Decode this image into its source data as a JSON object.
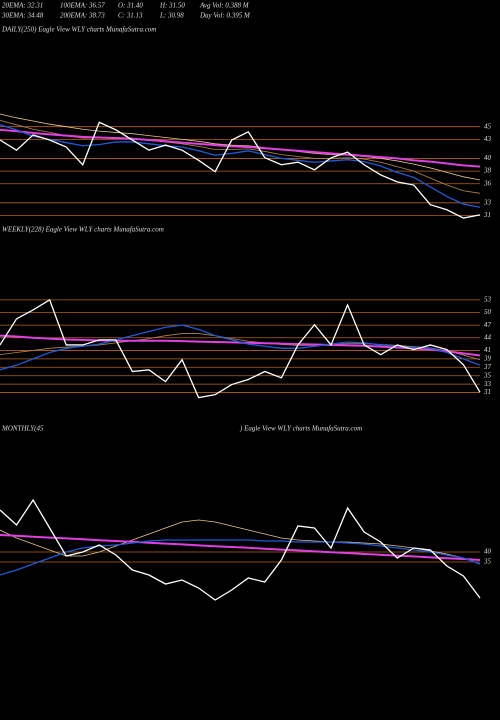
{
  "header": {
    "rows": [
      [
        "20EMA: 32.31",
        "100EMA: 36.57",
        "O: 31.40",
        "H: 31.50",
        "Avg Vol: 0.388 M"
      ],
      [
        "30EMA: 34.48",
        "200EMA: 38.73",
        "C: 31.13",
        "L: 30.98",
        "Day Vol: 0.395 M"
      ]
    ]
  },
  "chart_data": [
    {
      "type": "line",
      "title": "DAILY(250) Eagle  View  WLY charts MunafaSutra.com",
      "categories": [
        null,
        null,
        null,
        null,
        null,
        null,
        null,
        null,
        null,
        null,
        null,
        null,
        null,
        null,
        null,
        null,
        null,
        null,
        null,
        null,
        null,
        null,
        null,
        null,
        null,
        null,
        null,
        null,
        null,
        null
      ],
      "ylim": [
        29.5,
        50
      ],
      "yticks": [
        45,
        43,
        40,
        38,
        36,
        33,
        31
      ],
      "grid": true,
      "grid_color": "#b8621b",
      "series": [
        {
          "color": "#e8c48a",
          "values": [
            47,
            46.4,
            45.9,
            45.4,
            45.0,
            44.6,
            44.3,
            44.1,
            43.9,
            43.6,
            43.3,
            43.0,
            42.7,
            42.3,
            42.1,
            42.0,
            41.7,
            41.4,
            41.1,
            40.8,
            40.6,
            40.5,
            40.3,
            40.0,
            39.6,
            39.1,
            38.5,
            37.8,
            37.1,
            36.6
          ]
        },
        {
          "color": "#b08850",
          "values": [
            46.0,
            45.3,
            44.6,
            44.1,
            43.6,
            43.2,
            43.2,
            43.3,
            43.2,
            42.9,
            42.6,
            42.3,
            41.9,
            41.4,
            41.4,
            41.5,
            41.1,
            40.6,
            40.3,
            40.0,
            40.0,
            40.1,
            39.9,
            39.4,
            38.7,
            38.0,
            36.9,
            35.8,
            34.9,
            34.5
          ]
        },
        {
          "color": "#e040e0",
          "values": [
            44.5,
            44.3,
            44.0,
            43.8,
            43.6,
            43.4,
            43.3,
            43.2,
            43.1,
            42.9,
            42.7,
            42.5,
            42.3,
            42.1,
            41.9,
            41.8,
            41.6,
            41.4,
            41.2,
            41.0,
            40.8,
            40.6,
            40.4,
            40.2,
            40.0,
            39.7,
            39.5,
            39.2,
            38.9,
            38.7
          ]
        },
        {
          "color": "#1e5bd8",
          "values": [
            45.3,
            44.5,
            43.5,
            43.0,
            42.5,
            42.0,
            42.2,
            42.6,
            42.6,
            42.3,
            42.0,
            41.8,
            41.2,
            40.5,
            40.8,
            41.2,
            40.6,
            40.0,
            39.7,
            39.4,
            39.6,
            39.8,
            39.5,
            38.8,
            37.8,
            37.0,
            35.5,
            34.0,
            32.8,
            32.3
          ]
        },
        {
          "color": "#ffffff",
          "values": [
            42.9,
            41.3,
            43.7,
            42.9,
            41.8,
            39.0,
            45.7,
            44.5,
            42.9,
            41.3,
            42.1,
            41.3,
            39.7,
            37.9,
            42.9,
            44.2,
            40.1,
            39.0,
            39.4,
            38.2,
            40.1,
            41.0,
            39.0,
            37.4,
            36.3,
            35.8,
            32.7,
            31.9,
            30.6,
            31.1
          ]
        }
      ]
    },
    {
      "type": "line",
      "title": "WEEKLY(228) Eagle  View  WLY charts MunafaSutra.com",
      "categories": [
        null,
        null,
        null,
        null,
        null,
        null,
        null,
        null,
        null,
        null,
        null,
        null,
        null,
        null,
        null,
        null,
        null,
        null,
        null,
        null,
        null,
        null,
        null,
        null,
        null,
        null,
        null,
        null,
        null,
        null
      ],
      "ylim": [
        29,
        57
      ],
      "yticks": [
        53,
        50,
        47,
        44,
        41,
        39,
        37,
        35,
        33,
        31
      ],
      "grid": true,
      "grid_color": "#b8621b",
      "series": [
        {
          "color": "#b08850",
          "values": [
            40,
            40.5,
            41,
            41.5,
            41.8,
            42,
            42.3,
            42.8,
            43.3,
            43.8,
            44.5,
            45,
            45,
            44.5,
            43.8,
            43.2,
            42.8,
            42.4,
            42.2,
            42.2,
            42.4,
            42.6,
            42.6,
            42.4,
            42.2,
            41.9,
            41.6,
            40.9,
            39.9,
            38.8
          ]
        },
        {
          "color": "#e040e0",
          "values": [
            44.5,
            44.3,
            44.0,
            43.8,
            43.6,
            43.5,
            43.4,
            43.3,
            43.3,
            43.3,
            43.3,
            43.2,
            43.1,
            43.0,
            42.9,
            42.8,
            42.7,
            42.6,
            42.5,
            42.4,
            42.3,
            42.2,
            42.1,
            41.9,
            41.7,
            41.5,
            41.2,
            40.8,
            40.3,
            39.8
          ]
        },
        {
          "color": "#1e5bd8",
          "values": [
            36.4,
            37.5,
            39.0,
            40.5,
            41.5,
            42.0,
            42.5,
            43.5,
            44.5,
            45.5,
            46.5,
            47.0,
            46.0,
            44.5,
            43.5,
            42.5,
            42.0,
            41.5,
            41.5,
            42.0,
            42.5,
            43.0,
            42.8,
            42.3,
            42.0,
            41.7,
            41.5,
            40.5,
            39.0,
            37.5
          ]
        },
        {
          "color": "#ffffff",
          "values": [
            42.3,
            48.5,
            50.6,
            53,
            42.3,
            42.3,
            43.5,
            43.5,
            36,
            36.4,
            33.6,
            38.8,
            29.8,
            30.5,
            32.9,
            34.1,
            36,
            34.5,
            42.3,
            47.1,
            42.3,
            51.8,
            42.3,
            40,
            42.3,
            41.2,
            42.3,
            41.2,
            37.6,
            31.1
          ]
        }
      ]
    },
    {
      "type": "line",
      "title": "MONTHLY(45",
      "subtitle": ") Eagle  View  WLY charts MunafaSutra.com",
      "categories": [
        null,
        null,
        null,
        null,
        null,
        null,
        null,
        null,
        null,
        null,
        null,
        null,
        null,
        null,
        null,
        null,
        null,
        null,
        null,
        null,
        null,
        null,
        null,
        null,
        null,
        null,
        null,
        null,
        null,
        null
      ],
      "ylim": [
        15,
        72
      ],
      "yticks": [
        40,
        35
      ],
      "grid": true,
      "grid_color": "#b8621b",
      "series": [
        {
          "color": "#e8c48a",
          "values": [
            51,
            47,
            44,
            41,
            38,
            38,
            40,
            43,
            46,
            49,
            52,
            55,
            56,
            55,
            53,
            51,
            49,
            47,
            46,
            45.5,
            45,
            45,
            44.5,
            44,
            43,
            42,
            40.5,
            39,
            37,
            34
          ]
        },
        {
          "color": "#e040e0",
          "values": [
            48.5,
            48.1,
            47.6,
            47.2,
            46.8,
            46.4,
            45.9,
            45.5,
            45.1,
            44.6,
            44.2,
            43.8,
            43.3,
            42.9,
            42.5,
            42.1,
            41.6,
            41.2,
            40.8,
            40.3,
            39.9,
            39.5,
            39.0,
            38.6,
            38.2,
            37.8,
            37.3,
            36.9,
            36.5,
            36.0
          ]
        },
        {
          "color": "#1e5bd8",
          "values": [
            28.5,
            31,
            34,
            37,
            40,
            42,
            43,
            43.5,
            44.5,
            45.5,
            46,
            46,
            46,
            46,
            46,
            46,
            45.5,
            45.5,
            45,
            45,
            45,
            44.5,
            44,
            43,
            42,
            41,
            40,
            38.5,
            37,
            34
          ]
        },
        {
          "color": "#ffffff",
          "values": [
            61,
            53.5,
            66,
            52,
            38,
            40,
            43.5,
            38.5,
            31,
            28.5,
            24,
            26,
            22,
            16,
            21,
            27,
            25,
            36,
            53,
            52,
            42,
            62,
            50,
            45,
            37,
            42,
            41,
            33,
            28,
            17
          ]
        }
      ]
    }
  ]
}
